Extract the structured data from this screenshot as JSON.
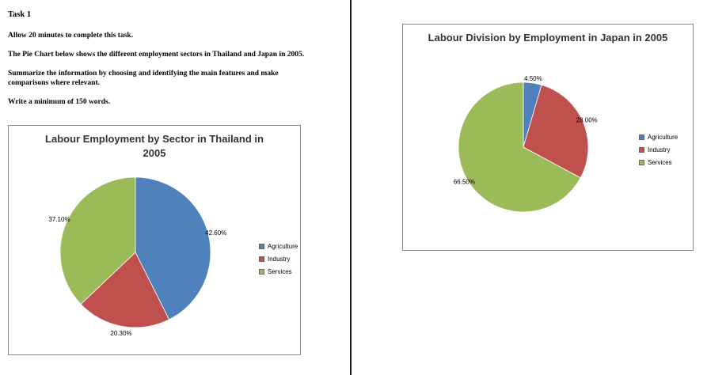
{
  "task": {
    "title": "Task 1",
    "paragraphs": [
      "Allow 20 minutes to complete this task.",
      "The Pie Chart below shows the different employment sectors in Thailand and Japan in 2005.",
      "Summarize the information by choosing and identifying the main features and make comparisons where relevant.",
      "Write a minimum of 150 words."
    ]
  },
  "chart_data": [
    {
      "type": "pie",
      "title": "Labour Employment by Sector in Thailand in 2005",
      "labels": [
        "Agriculture",
        "Industry",
        "Services"
      ],
      "values": [
        42.6,
        20.3,
        37.1
      ],
      "value_labels": [
        "42.60%",
        "20.30%",
        "37.10%"
      ],
      "colors": [
        "#4f81bd",
        "#c0504d",
        "#9bbb59"
      ],
      "legend_position": "right",
      "units": "percent of labour force"
    },
    {
      "type": "pie",
      "title": "Labour Division by Employment in Japan in 2005",
      "labels": [
        "Agriculture",
        "Industry",
        "Services"
      ],
      "values": [
        4.5,
        28.0,
        66.5
      ],
      "value_labels": [
        "4.50%",
        "28.00%",
        "66.50%"
      ],
      "colors": [
        "#4f81bd",
        "#c0504d",
        "#9bbb59"
      ],
      "legend_position": "right",
      "units": "percent of labour force"
    }
  ]
}
